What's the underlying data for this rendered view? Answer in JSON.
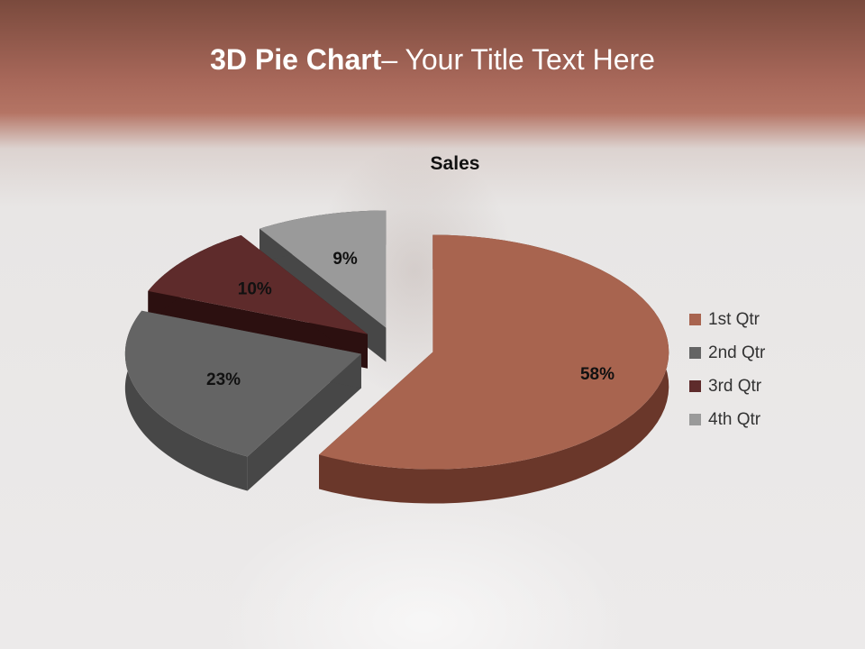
{
  "slide": {
    "title_bold": "3D Pie Chart",
    "title_rest": "– Your Title Text Here"
  },
  "chart_data": {
    "type": "pie",
    "variant": "3d-exploded",
    "title": "Sales",
    "categories": [
      "1st Qtr",
      "2nd Qtr",
      "3rd Qtr",
      "4th Qtr"
    ],
    "values": [
      58,
      23,
      10,
      9
    ],
    "labels": [
      "58%",
      "23%",
      "10%",
      "9%"
    ],
    "colors": [
      "#a8644f",
      "#646464",
      "#5e2b2b",
      "#9a9a9a"
    ],
    "side_colors": [
      "#6a372a",
      "#474747",
      "#2c1010",
      "#474747"
    ],
    "legend_placement": "right"
  }
}
